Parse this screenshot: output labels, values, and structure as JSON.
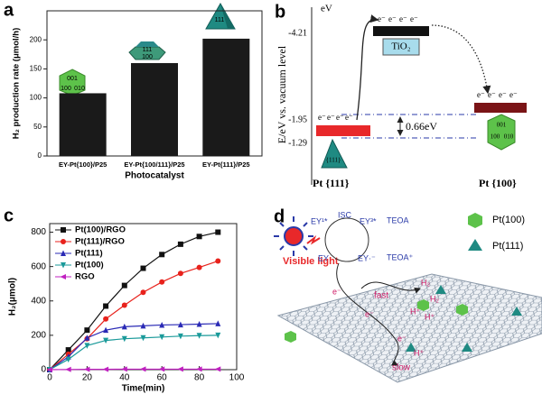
{
  "panel_labels": [
    "a",
    "b",
    "c",
    "d"
  ],
  "chart_data": [
    {
      "type": "bar",
      "xlabel": "Photocatalyst",
      "ylabel": "H₂ production rate (μmol/h)",
      "categories": [
        "EY-Pt{100}/P25",
        "EY-Pt{100/111}/P25",
        "EY-Pt{111}/P25"
      ],
      "values": [
        108,
        160,
        202
      ],
      "color": "#1a1a1a",
      "ylim": [
        0,
        250
      ],
      "yticks": [
        0,
        50,
        100,
        150,
        200
      ],
      "grid": false,
      "annotations": [
        "001",
        "100",
        "010",
        "111"
      ]
    },
    {
      "type": "line",
      "xlabel": "Time(min)",
      "ylabel": "H₂(μmol)",
      "x": [
        0,
        10,
        20,
        30,
        40,
        50,
        60,
        70,
        80,
        90
      ],
      "xlim": [
        0,
        100
      ],
      "xticks": [
        0,
        20,
        40,
        60,
        80,
        100
      ],
      "ylim": [
        0,
        850
      ],
      "yticks": [
        0,
        200,
        400,
        600,
        800
      ],
      "grid": false,
      "legend": "upper left",
      "series": [
        {
          "name": "Pt(100)/RGO",
          "color": "#111111",
          "marker": "square",
          "values": [
            0,
            115,
            230,
            370,
            490,
            590,
            670,
            730,
            775,
            800
          ]
        },
        {
          "name": "Pt(111)/RGO",
          "color": "#e8221c",
          "marker": "circle",
          "values": [
            0,
            90,
            180,
            295,
            375,
            450,
            510,
            560,
            595,
            632
          ]
        },
        {
          "name": "Pt(111)",
          "color": "#2a2ab5",
          "marker": "triangle-up",
          "values": [
            0,
            75,
            185,
            230,
            250,
            255,
            260,
            262,
            265,
            268
          ]
        },
        {
          "name": "Pt(100)",
          "color": "#1a9a9a",
          "marker": "triangle-down",
          "values": [
            0,
            60,
            140,
            170,
            180,
            185,
            190,
            195,
            198,
            200
          ]
        },
        {
          "name": "RGO",
          "color": "#c020c0",
          "marker": "triangle-left",
          "values": [
            0,
            1,
            2,
            2,
            3,
            3,
            3,
            3,
            3,
            3
          ]
        }
      ]
    }
  ],
  "diagram_b": {
    "unit": "eV",
    "axis_label": "E/eV vs. vacuum level",
    "levels": [
      "-4.21",
      "-1.95",
      "-1.29"
    ],
    "material": "TiO₂",
    "gap": "0.66eV",
    "electron": "e⁻",
    "facets": [
      "Pt {111}",
      "Pt {100}"
    ],
    "crystal_labels": [
      "{111}",
      "001",
      "100",
      "010"
    ]
  },
  "diagram_d": {
    "light": "Visible light",
    "cycle": [
      "EY¹*",
      "ISC",
      "EY³*",
      "TEOA",
      "TEOA⁺",
      "EY·⁻",
      "EY"
    ],
    "electron": "e⁻",
    "fast": "fast",
    "slow": "slow",
    "h2": "H₂",
    "hplus": "H⁺",
    "legend": [
      "Pt(100)",
      "Pt(111)"
    ]
  }
}
